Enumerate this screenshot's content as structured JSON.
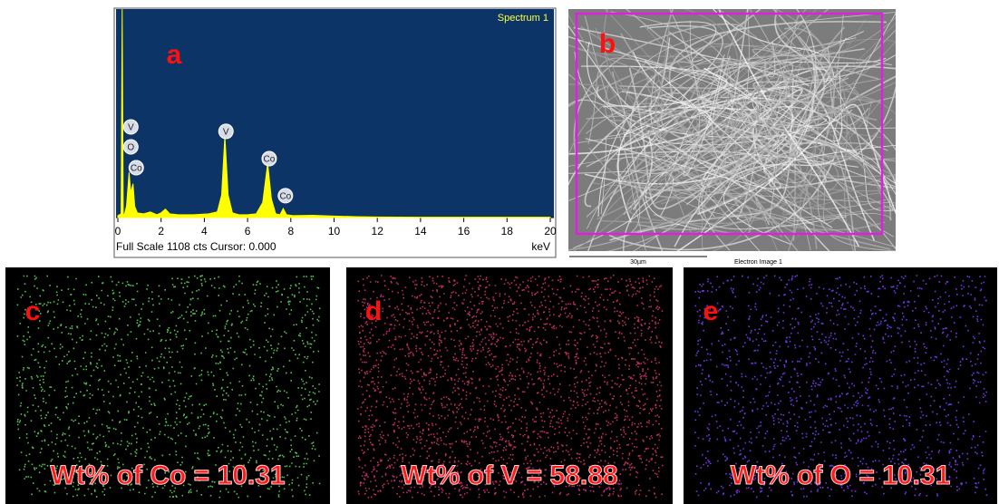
{
  "chart_data": {
    "type": "area",
    "title": "Spectrum 1",
    "panel_label": "a",
    "x_label": "keV",
    "footer": "Full Scale 1108 cts Cursor: 0.000",
    "x": [
      0,
      0.15,
      0.2,
      0.25,
      0.3,
      0.4,
      0.52,
      0.6,
      0.7,
      0.78,
      0.9,
      1.2,
      1.5,
      1.8,
      2.0,
      2.2,
      2.4,
      2.8,
      3.5,
      4.2,
      4.6,
      4.8,
      4.95,
      5.1,
      5.3,
      5.6,
      6.0,
      6.4,
      6.7,
      6.93,
      7.1,
      7.3,
      7.5,
      7.65,
      7.8,
      8.1,
      9,
      10,
      11,
      12,
      14,
      16,
      18,
      20
    ],
    "values": [
      10,
      20,
      1108,
      20,
      15,
      60,
      240,
      130,
      180,
      60,
      25,
      20,
      30,
      15,
      25,
      45,
      20,
      15,
      15,
      20,
      30,
      120,
      434,
      120,
      25,
      15,
      15,
      20,
      80,
      289,
      100,
      20,
      15,
      48,
      15,
      10,
      12,
      8,
      5,
      3,
      2,
      2,
      2,
      2
    ],
    "color": "#ffff00",
    "xlim": [
      0,
      20
    ],
    "xticks": [
      0,
      2,
      4,
      6,
      8,
      10,
      12,
      14,
      16,
      18,
      20
    ],
    "ylim": [
      0,
      1108
    ],
    "annotations": [
      {
        "text": "V",
        "x": 0.6,
        "y": 482
      },
      {
        "text": "O",
        "x": 0.6,
        "y": 376
      },
      {
        "text": "Co",
        "x": 0.85,
        "y": 265
      },
      {
        "text": "V",
        "x": 5.0,
        "y": 458
      },
      {
        "text": "Co",
        "x": 7.0,
        "y": 313
      },
      {
        "text": "Co",
        "x": 7.75,
        "y": 116
      }
    ]
  },
  "image_b": {
    "label": "b",
    "scale": "30µm",
    "caption": "Electron Image 1"
  },
  "maps": [
    {
      "label": "c",
      "caption": "Wt% of Co = 10.31",
      "color": "#5ad25a"
    },
    {
      "label": "d",
      "caption": "Wt% of V = 58.88",
      "color": "#d0306e"
    },
    {
      "label": "e",
      "caption": "Wt% of O = 10.31",
      "color": "#7a3cff"
    }
  ]
}
